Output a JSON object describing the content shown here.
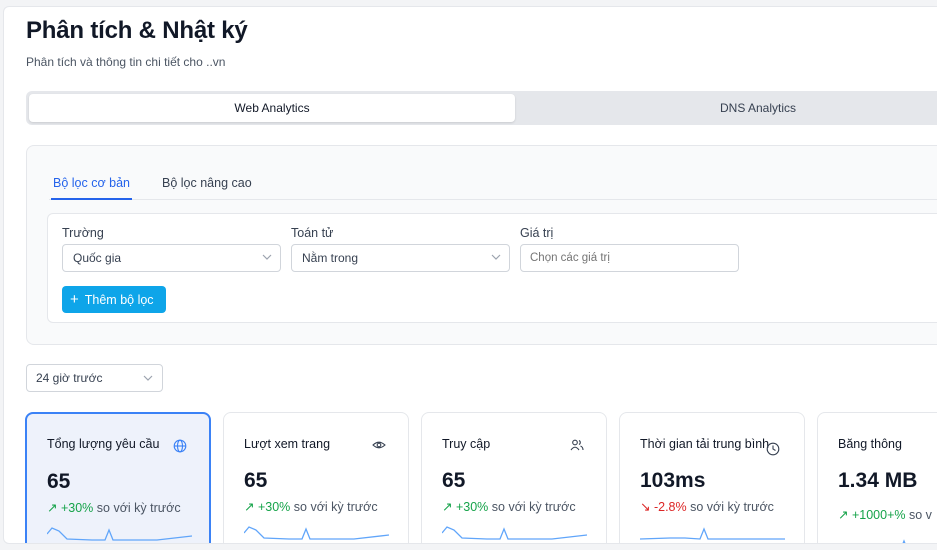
{
  "page": {
    "title": "Phân tích & Nhật ký",
    "subtitle": "Phân tích và thông tin chi tiết cho ..vn"
  },
  "tabs": [
    {
      "label": "Web Analytics",
      "active": true
    },
    {
      "label": "DNS Analytics",
      "active": false
    }
  ],
  "filter": {
    "subtabs": [
      {
        "label": "Bộ lọc cơ bản",
        "active": true
      },
      {
        "label": "Bộ lọc nâng cao",
        "active": false
      }
    ],
    "field_label": "Trường",
    "field_value": "Quốc gia",
    "operator_label": "Toán tử",
    "operator_value": "Nằm trong",
    "value_label": "Giá trị",
    "value_placeholder": "Chọn các giá trị",
    "add_button": "Thêm bộ lọc"
  },
  "time_range": "24 giờ trước",
  "stats": [
    {
      "label": "Tổng lượng yêu cầu",
      "icon": "globe-icon",
      "value": "65",
      "delta": "+30%",
      "trend": "up",
      "suffix": "so với kỳ trước"
    },
    {
      "label": "Lượt xem trang",
      "icon": "eye-icon",
      "value": "65",
      "delta": "+30%",
      "trend": "up",
      "suffix": "so với kỳ trước"
    },
    {
      "label": "Truy cập",
      "icon": "users-icon",
      "value": "65",
      "delta": "+30%",
      "trend": "up",
      "suffix": "so với kỳ trước"
    },
    {
      "label": "Thời gian tải trung bình",
      "icon": "clock-icon",
      "value": "103ms",
      "delta": "-2.8%",
      "trend": "down",
      "suffix": "so với kỳ trước"
    },
    {
      "label": "Băng thông",
      "icon": "none",
      "value": "1.34 MB",
      "delta": "+1000+%",
      "trend": "up",
      "suffix": "so v"
    }
  ],
  "colors": {
    "accent": "#2563eb",
    "button": "#0ea5e9",
    "up": "#16a34a",
    "down": "#dc2626"
  }
}
